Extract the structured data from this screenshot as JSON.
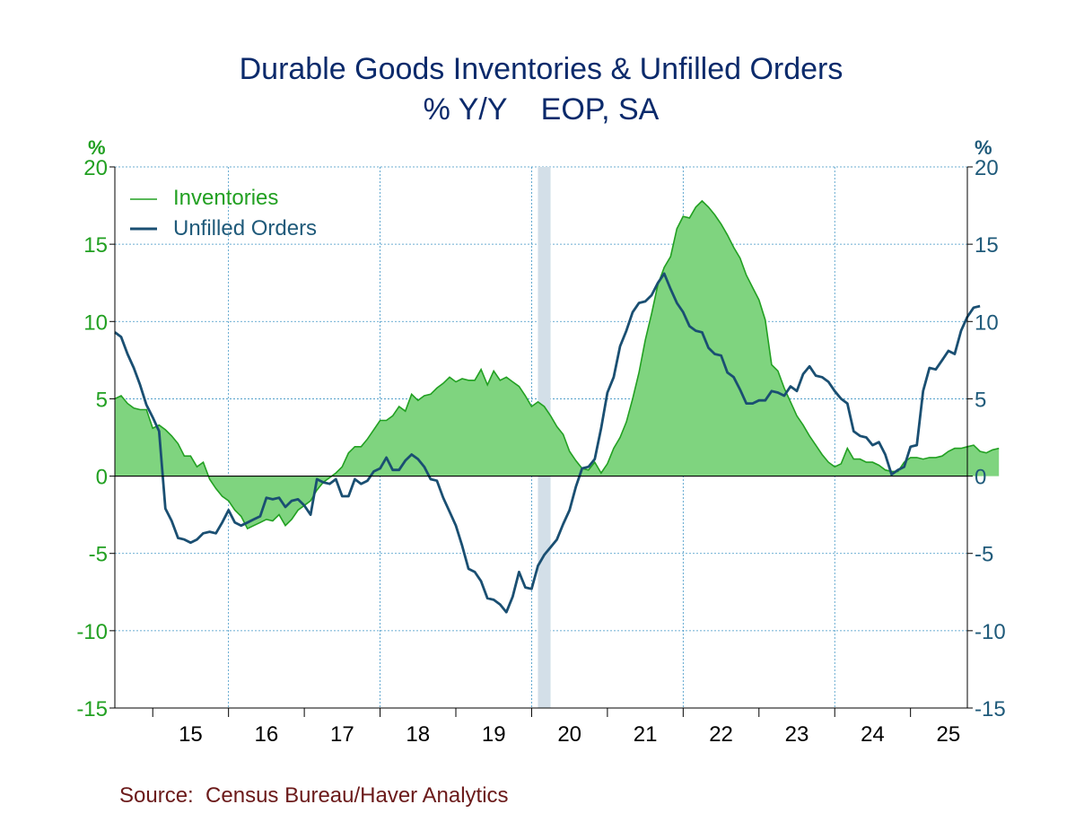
{
  "chart_data": {
    "type": "line",
    "title": "Durable Goods Inventories & Unfilled Orders",
    "subtitle": "% Y/Y    EOP, SA",
    "source": "Source:  Census Bureau/Haver Analytics",
    "y_unit_left": "%",
    "y_unit_right": "%",
    "ylim": [
      -15,
      20
    ],
    "yticks": [
      -15,
      -10,
      -5,
      0,
      5,
      10,
      15,
      20
    ],
    "xlim": [
      2014.5,
      2025.75
    ],
    "x_tick_labels": [
      {
        "label": "15",
        "year": 2015
      },
      {
        "label": "16",
        "year": 2016
      },
      {
        "label": "17",
        "year": 2017
      },
      {
        "label": "18",
        "year": 2018
      },
      {
        "label": "19",
        "year": 2019
      },
      {
        "label": "20",
        "year": 2020
      },
      {
        "label": "21",
        "year": 2021
      },
      {
        "label": "22",
        "year": 2022
      },
      {
        "label": "23",
        "year": 2023
      },
      {
        "label": "24",
        "year": 2024
      },
      {
        "label": "25",
        "year": 2025
      }
    ],
    "recession_shading": [
      {
        "start": "2020-02",
        "end": "2020-04"
      }
    ],
    "grid": true,
    "legend_position": "top-left",
    "series": [
      {
        "name": "Inventories",
        "style": "area",
        "color": "#22a022",
        "fill": "#7fd47f",
        "points": [
          [
            "2014-07",
            5.0
          ],
          [
            "2014-08",
            5.2
          ],
          [
            "2014-09",
            4.7
          ],
          [
            "2014-10",
            4.4
          ],
          [
            "2014-11",
            4.3
          ],
          [
            "2014-12",
            4.3
          ],
          [
            "2015-01",
            3.1
          ],
          [
            "2015-02",
            3.3
          ],
          [
            "2015-03",
            3.0
          ],
          [
            "2015-04",
            2.6
          ],
          [
            "2015-05",
            2.1
          ],
          [
            "2015-06",
            1.3
          ],
          [
            "2015-07",
            1.3
          ],
          [
            "2015-08",
            0.6
          ],
          [
            "2015-09",
            0.9
          ],
          [
            "2015-10",
            -0.2
          ],
          [
            "2015-11",
            -0.8
          ],
          [
            "2015-12",
            -1.3
          ],
          [
            "2016-01",
            -1.6
          ],
          [
            "2016-02",
            -2.2
          ],
          [
            "2016-03",
            -2.6
          ],
          [
            "2016-04",
            -3.4
          ],
          [
            "2016-05",
            -3.2
          ],
          [
            "2016-06",
            -3.0
          ],
          [
            "2016-07",
            -2.8
          ],
          [
            "2016-08",
            -2.9
          ],
          [
            "2016-09",
            -2.5
          ],
          [
            "2016-10",
            -3.2
          ],
          [
            "2016-11",
            -2.8
          ],
          [
            "2016-12",
            -2.2
          ],
          [
            "2017-01",
            -1.9
          ],
          [
            "2017-02",
            -1.6
          ],
          [
            "2017-03",
            -0.9
          ],
          [
            "2017-04",
            -0.4
          ],
          [
            "2017-05",
            -0.1
          ],
          [
            "2017-06",
            0.2
          ],
          [
            "2017-07",
            0.6
          ],
          [
            "2017-08",
            1.5
          ],
          [
            "2017-09",
            1.9
          ],
          [
            "2017-10",
            1.9
          ],
          [
            "2017-11",
            2.4
          ],
          [
            "2017-12",
            3.0
          ],
          [
            "2018-01",
            3.6
          ],
          [
            "2018-02",
            3.6
          ],
          [
            "2018-03",
            3.9
          ],
          [
            "2018-04",
            4.5
          ],
          [
            "2018-05",
            4.2
          ],
          [
            "2018-06",
            5.3
          ],
          [
            "2018-07",
            4.9
          ],
          [
            "2018-08",
            5.2
          ],
          [
            "2018-09",
            5.3
          ],
          [
            "2018-10",
            5.7
          ],
          [
            "2018-11",
            6.0
          ],
          [
            "2018-12",
            6.4
          ],
          [
            "2019-01",
            6.1
          ],
          [
            "2019-02",
            6.3
          ],
          [
            "2019-03",
            6.2
          ],
          [
            "2019-04",
            6.2
          ],
          [
            "2019-05",
            6.9
          ],
          [
            "2019-06",
            5.9
          ],
          [
            "2019-07",
            6.8
          ],
          [
            "2019-08",
            6.2
          ],
          [
            "2019-09",
            6.4
          ],
          [
            "2019-10",
            6.1
          ],
          [
            "2019-11",
            5.8
          ],
          [
            "2019-12",
            5.2
          ],
          [
            "2020-01",
            4.5
          ],
          [
            "2020-02",
            4.8
          ],
          [
            "2020-03",
            4.5
          ],
          [
            "2020-04",
            3.9
          ],
          [
            "2020-05",
            3.2
          ],
          [
            "2020-06",
            2.7
          ],
          [
            "2020-07",
            1.6
          ],
          [
            "2020-08",
            1.0
          ],
          [
            "2020-09",
            0.5
          ],
          [
            "2020-10",
            0.4
          ],
          [
            "2020-11",
            0.9
          ],
          [
            "2020-12",
            0.2
          ],
          [
            "2021-01",
            0.8
          ],
          [
            "2021-02",
            1.8
          ],
          [
            "2021-03",
            2.5
          ],
          [
            "2021-04",
            3.5
          ],
          [
            "2021-05",
            5.0
          ],
          [
            "2021-06",
            6.7
          ],
          [
            "2021-07",
            8.8
          ],
          [
            "2021-08",
            10.5
          ],
          [
            "2021-09",
            12.4
          ],
          [
            "2021-10",
            13.5
          ],
          [
            "2021-11",
            14.2
          ],
          [
            "2021-12",
            16.0
          ],
          [
            "2022-01",
            16.8
          ],
          [
            "2022-02",
            16.7
          ],
          [
            "2022-03",
            17.4
          ],
          [
            "2022-04",
            17.8
          ],
          [
            "2022-05",
            17.4
          ],
          [
            "2022-06",
            16.9
          ],
          [
            "2022-07",
            16.3
          ],
          [
            "2022-08",
            15.6
          ],
          [
            "2022-09",
            14.8
          ],
          [
            "2022-10",
            14.1
          ],
          [
            "2022-11",
            13.0
          ],
          [
            "2022-12",
            12.2
          ],
          [
            "2023-01",
            11.4
          ],
          [
            "2023-02",
            10.1
          ],
          [
            "2023-03",
            7.2
          ],
          [
            "2023-04",
            6.8
          ],
          [
            "2023-05",
            5.7
          ],
          [
            "2023-06",
            4.8
          ],
          [
            "2023-07",
            3.9
          ],
          [
            "2023-08",
            3.3
          ],
          [
            "2023-09",
            2.6
          ],
          [
            "2023-10",
            2.0
          ],
          [
            "2023-11",
            1.4
          ],
          [
            "2023-12",
            0.9
          ],
          [
            "2024-01",
            0.6
          ],
          [
            "2024-02",
            0.8
          ],
          [
            "2024-03",
            1.8
          ],
          [
            "2024-04",
            1.1
          ],
          [
            "2024-05",
            1.1
          ],
          [
            "2024-06",
            0.9
          ],
          [
            "2024-07",
            0.9
          ],
          [
            "2024-08",
            0.7
          ],
          [
            "2024-09",
            0.4
          ],
          [
            "2024-10",
            0.3
          ],
          [
            "2024-11",
            0.3
          ],
          [
            "2024-12",
            0.9
          ],
          [
            "2025-01",
            1.2
          ],
          [
            "2025-02",
            1.2
          ],
          [
            "2025-03",
            1.1
          ],
          [
            "2025-04",
            1.2
          ],
          [
            "2025-05",
            1.2
          ],
          [
            "2025-06",
            1.3
          ],
          [
            "2025-07",
            1.6
          ],
          [
            "2025-08",
            1.8
          ],
          [
            "2025-09",
            1.8
          ],
          [
            "2025-10",
            1.9
          ],
          [
            "2025-11",
            2.0
          ],
          [
            "2025-12",
            1.6
          ],
          [
            "2026-01",
            1.5
          ],
          [
            "2026-02",
            1.7
          ],
          [
            "2026-03",
            1.8
          ]
        ]
      },
      {
        "name": "Unfilled Orders",
        "style": "line",
        "color": "#1a4f72",
        "points": [
          [
            "2014-07",
            9.3
          ],
          [
            "2014-08",
            9.0
          ],
          [
            "2014-09",
            7.9
          ],
          [
            "2014-10",
            7.0
          ],
          [
            "2014-11",
            5.9
          ],
          [
            "2014-12",
            4.6
          ],
          [
            "2015-01",
            3.8
          ],
          [
            "2015-02",
            2.9
          ],
          [
            "2015-03",
            -2.1
          ],
          [
            "2015-04",
            -2.9
          ],
          [
            "2015-05",
            -4.0
          ],
          [
            "2015-06",
            -4.1
          ],
          [
            "2015-07",
            -4.3
          ],
          [
            "2015-08",
            -4.1
          ],
          [
            "2015-09",
            -3.7
          ],
          [
            "2015-10",
            -3.6
          ],
          [
            "2015-11",
            -3.7
          ],
          [
            "2015-12",
            -3.0
          ],
          [
            "2016-01",
            -2.2
          ],
          [
            "2016-02",
            -3.0
          ],
          [
            "2016-03",
            -3.2
          ],
          [
            "2016-04",
            -3.0
          ],
          [
            "2016-05",
            -2.8
          ],
          [
            "2016-06",
            -2.6
          ],
          [
            "2016-07",
            -1.4
          ],
          [
            "2016-08",
            -1.5
          ],
          [
            "2016-09",
            -1.4
          ],
          [
            "2016-10",
            -2.0
          ],
          [
            "2016-11",
            -1.6
          ],
          [
            "2016-12",
            -1.5
          ],
          [
            "2017-01",
            -1.9
          ],
          [
            "2017-02",
            -2.5
          ],
          [
            "2017-03",
            -0.2
          ],
          [
            "2017-04",
            -0.4
          ],
          [
            "2017-05",
            -0.5
          ],
          [
            "2017-06",
            -0.2
          ],
          [
            "2017-07",
            -1.3
          ],
          [
            "2017-08",
            -1.3
          ],
          [
            "2017-09",
            -0.2
          ],
          [
            "2017-10",
            -0.5
          ],
          [
            "2017-11",
            -0.3
          ],
          [
            "2017-12",
            0.3
          ],
          [
            "2018-01",
            0.5
          ],
          [
            "2018-02",
            1.2
          ],
          [
            "2018-03",
            0.4
          ],
          [
            "2018-04",
            0.4
          ],
          [
            "2018-05",
            1.0
          ],
          [
            "2018-06",
            1.4
          ],
          [
            "2018-07",
            1.1
          ],
          [
            "2018-08",
            0.6
          ],
          [
            "2018-09",
            -0.2
          ],
          [
            "2018-10",
            -0.3
          ],
          [
            "2018-11",
            -1.4
          ],
          [
            "2018-12",
            -2.3
          ],
          [
            "2019-01",
            -3.2
          ],
          [
            "2019-02",
            -4.5
          ],
          [
            "2019-03",
            -6.0
          ],
          [
            "2019-04",
            -6.2
          ],
          [
            "2019-05",
            -6.8
          ],
          [
            "2019-06",
            -7.9
          ],
          [
            "2019-07",
            -8.0
          ],
          [
            "2019-08",
            -8.3
          ],
          [
            "2019-09",
            -8.8
          ],
          [
            "2019-10",
            -7.8
          ],
          [
            "2019-11",
            -6.2
          ],
          [
            "2019-12",
            -7.2
          ],
          [
            "2020-01",
            -7.3
          ],
          [
            "2020-02",
            -5.8
          ],
          [
            "2020-03",
            -5.1
          ],
          [
            "2020-04",
            -4.6
          ],
          [
            "2020-05",
            -4.1
          ],
          [
            "2020-06",
            -3.1
          ],
          [
            "2020-07",
            -2.2
          ],
          [
            "2020-08",
            -0.7
          ],
          [
            "2020-09",
            0.5
          ],
          [
            "2020-10",
            0.6
          ],
          [
            "2020-11",
            1.1
          ],
          [
            "2020-12",
            3.1
          ],
          [
            "2021-01",
            5.4
          ],
          [
            "2021-02",
            6.4
          ],
          [
            "2021-03",
            8.4
          ],
          [
            "2021-04",
            9.4
          ],
          [
            "2021-05",
            10.6
          ],
          [
            "2021-06",
            11.2
          ],
          [
            "2021-07",
            11.3
          ],
          [
            "2021-08",
            11.7
          ],
          [
            "2021-09",
            12.5
          ],
          [
            "2021-10",
            13.1
          ],
          [
            "2021-11",
            12.1
          ],
          [
            "2021-12",
            11.2
          ],
          [
            "2022-01",
            10.6
          ],
          [
            "2022-02",
            9.7
          ],
          [
            "2022-03",
            9.4
          ],
          [
            "2022-04",
            9.3
          ],
          [
            "2022-05",
            8.3
          ],
          [
            "2022-06",
            7.9
          ],
          [
            "2022-07",
            7.8
          ],
          [
            "2022-08",
            6.7
          ],
          [
            "2022-09",
            6.4
          ],
          [
            "2022-10",
            5.6
          ],
          [
            "2022-11",
            4.7
          ],
          [
            "2022-12",
            4.7
          ],
          [
            "2023-01",
            4.9
          ],
          [
            "2023-02",
            4.9
          ],
          [
            "2023-03",
            5.5
          ],
          [
            "2023-04",
            5.4
          ],
          [
            "2023-05",
            5.2
          ],
          [
            "2023-06",
            5.8
          ],
          [
            "2023-07",
            5.5
          ],
          [
            "2023-08",
            6.6
          ],
          [
            "2023-09",
            7.1
          ],
          [
            "2023-10",
            6.5
          ],
          [
            "2023-11",
            6.4
          ],
          [
            "2023-12",
            6.1
          ],
          [
            "2024-01",
            5.5
          ],
          [
            "2024-02",
            5.0
          ],
          [
            "2024-03",
            4.7
          ],
          [
            "2024-04",
            2.9
          ],
          [
            "2024-05",
            2.6
          ],
          [
            "2024-06",
            2.5
          ],
          [
            "2024-07",
            2.0
          ],
          [
            "2024-08",
            2.2
          ],
          [
            "2024-09",
            1.4
          ],
          [
            "2024-10",
            0.1
          ],
          [
            "2024-11",
            0.4
          ],
          [
            "2024-12",
            0.6
          ],
          [
            "2025-01",
            1.9
          ],
          [
            "2025-02",
            2.0
          ],
          [
            "2025-03",
            5.5
          ],
          [
            "2025-04",
            7.0
          ],
          [
            "2025-05",
            6.9
          ],
          [
            "2025-06",
            7.5
          ],
          [
            "2025-07",
            8.1
          ],
          [
            "2025-08",
            7.9
          ],
          [
            "2025-09",
            9.4
          ],
          [
            "2025-10",
            10.3
          ],
          [
            "2025-11",
            10.9
          ],
          [
            "2025-12",
            11.0
          ]
        ]
      }
    ]
  }
}
